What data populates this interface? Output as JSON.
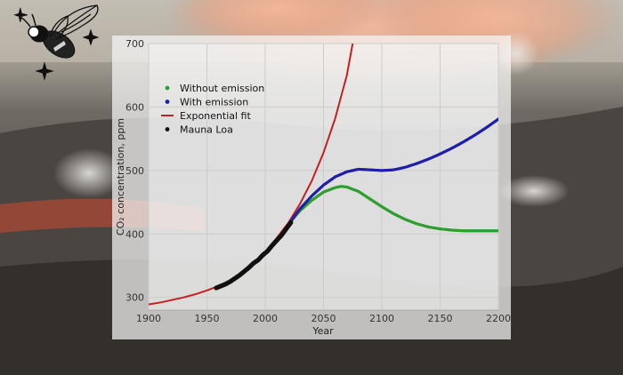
{
  "chart_data": {
    "type": "line",
    "title": "",
    "xlabel": "Year",
    "ylabel": "CO₂ concentration, ppm",
    "xlim": [
      1900,
      2200
    ],
    "ylim": [
      280,
      700
    ],
    "xticks": [
      1900,
      1950,
      2000,
      2050,
      2100,
      2150,
      2200
    ],
    "yticks": [
      300,
      400,
      500,
      600,
      700
    ],
    "grid": true,
    "legend_position": "top-left",
    "series": [
      {
        "name": "Without emission",
        "color": "#2e9e2e",
        "marker": "dot",
        "x": [
          2022,
          2030,
          2040,
          2050,
          2060,
          2065,
          2070,
          2080,
          2090,
          2100,
          2110,
          2120,
          2130,
          2140,
          2150,
          2160,
          2170,
          2180,
          2190,
          2200
        ],
        "y": [
          420,
          437,
          453,
          466,
          473,
          475,
          474,
          467,
          455,
          443,
          432,
          423,
          416,
          411,
          408,
          406,
          405,
          405,
          405,
          405
        ]
      },
      {
        "name": "With emission",
        "color": "#1f1fa8",
        "marker": "dot",
        "x": [
          2022,
          2030,
          2040,
          2050,
          2060,
          2070,
          2080,
          2090,
          2100,
          2110,
          2120,
          2130,
          2140,
          2150,
          2160,
          2170,
          2180,
          2190,
          2200
        ],
        "y": [
          420,
          440,
          460,
          477,
          490,
          498,
          502,
          501,
          500,
          501,
          505,
          511,
          518,
          526,
          535,
          545,
          556,
          568,
          581
        ]
      },
      {
        "name": "Exponential fit",
        "color": "#c42020",
        "marker": "line",
        "x": [
          1900,
          1910,
          1920,
          1930,
          1940,
          1950,
          1960,
          1970,
          1980,
          1990,
          2000,
          2010,
          2020,
          2030,
          2040,
          2050,
          2060,
          2070,
          2075
        ],
        "y": [
          289,
          292,
          296,
          300,
          305,
          311,
          318,
          327,
          339,
          354,
          372,
          394,
          418,
          448,
          484,
          528,
          582,
          650,
          700
        ]
      },
      {
        "name": "Mauna Loa",
        "color": "#111111",
        "marker": "dot",
        "x": [
          1958,
          1962,
          1966,
          1970,
          1974,
          1978,
          1982,
          1986,
          1990,
          1994,
          1998,
          2002,
          2006,
          2010,
          2014,
          2018,
          2022
        ],
        "y": [
          315,
          318,
          321,
          325,
          330,
          335,
          341,
          347,
          354,
          359,
          367,
          373,
          382,
          390,
          398,
          408,
          418
        ]
      }
    ]
  },
  "colors": {
    "plot_background": "#f4f4f4",
    "grid": "#cccccc",
    "sky": "#c9c2b6",
    "smoke": "#e8b59a",
    "lava_glow": "#e0533a",
    "ground": "#3d3935"
  },
  "icons": {
    "logo": "bee-with-sparkles-icon"
  }
}
